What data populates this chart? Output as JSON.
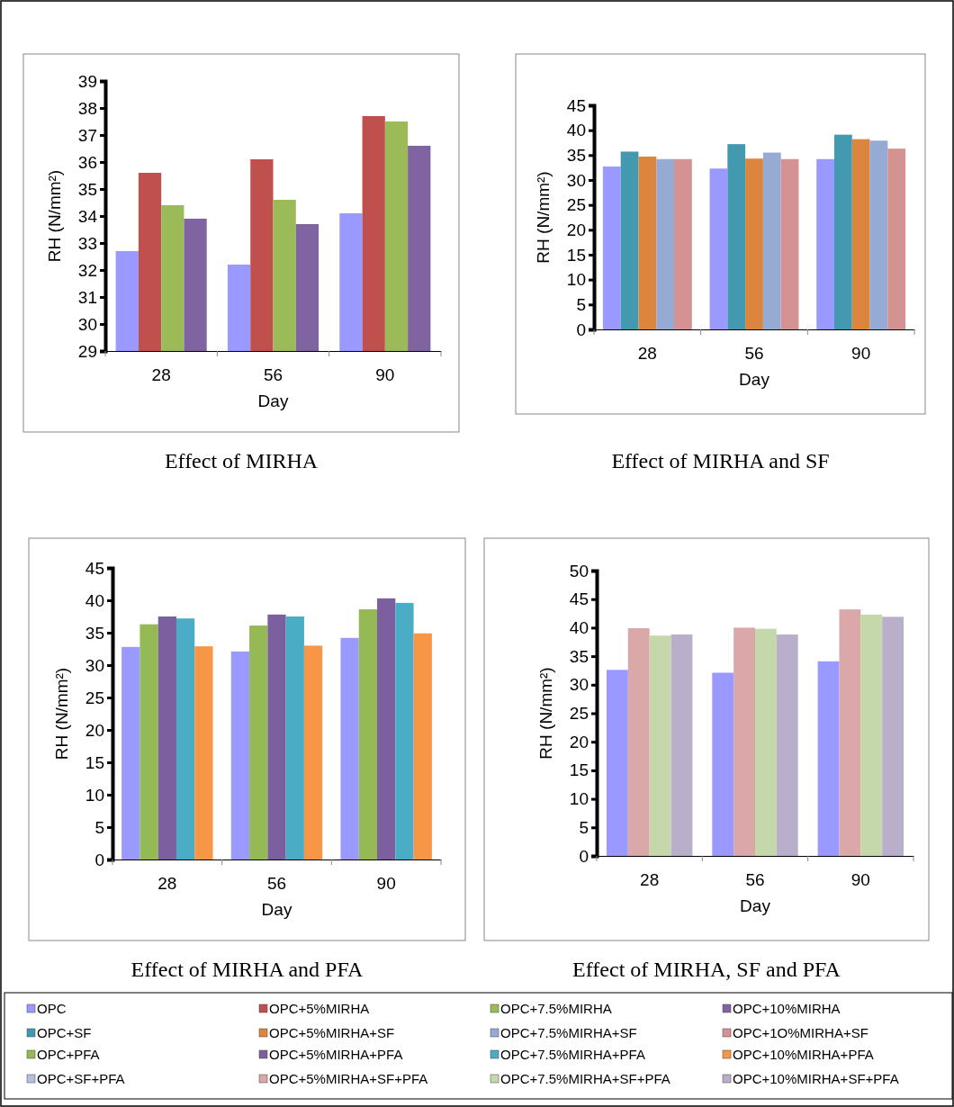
{
  "chart_data": [
    {
      "type": "bar",
      "title": "Effect of MIRHA",
      "xlabel": "Day",
      "ylabel": "RH  (N/mm²)",
      "categories": [
        "28",
        "56",
        "90"
      ],
      "ylim": [
        29,
        39
      ],
      "yticks": [
        29,
        30,
        31,
        32,
        33,
        34,
        35,
        36,
        37,
        38,
        39
      ],
      "legend": "bottom",
      "series": [
        {
          "name": "OPC",
          "color": "#9999ff",
          "values": [
            32.7,
            32.2,
            34.1
          ]
        },
        {
          "name": "OPC+5%MIRHA",
          "color": "#c0504d",
          "values": [
            35.6,
            36.1,
            37.7
          ]
        },
        {
          "name": "OPC+7.5%MIRHA",
          "color": "#9bbb59",
          "values": [
            34.4,
            34.6,
            37.5
          ]
        },
        {
          "name": "OPC+10%MIRHA",
          "color": "#8064a2",
          "values": [
            33.9,
            33.7,
            36.6
          ]
        }
      ]
    },
    {
      "type": "bar",
      "title": "Effect of MIRHA and SF",
      "xlabel": "Day",
      "ylabel": "RH  (N/mm²)",
      "categories": [
        "28",
        "56",
        "90"
      ],
      "ylim": [
        0,
        45
      ],
      "yticks": [
        0,
        5,
        10,
        15,
        20,
        25,
        30,
        35,
        40,
        45
      ],
      "legend": "bottom",
      "series": [
        {
          "color": "#9999ff",
          "values": [
            32.7,
            32.3,
            34.2
          ]
        },
        {
          "name": "OPC+SF",
          "color": "#4399b0",
          "values": [
            35.7,
            37.2,
            39.1
          ]
        },
        {
          "name": "OPC+5%MIRHA+SF",
          "color": "#dc853e",
          "values": [
            34.7,
            34.3,
            38.2
          ]
        },
        {
          "name": "OPC+7.5%MIRHA+SF",
          "color": "#95abd3",
          "values": [
            34.2,
            35.5,
            37.9
          ]
        },
        {
          "name": "OPC+1O%MIRHA+SF",
          "color": "#d49292",
          "values": [
            34.2,
            34.2,
            36.3
          ]
        }
      ]
    },
    {
      "type": "bar",
      "title": "Effect of MIRHA and PFA",
      "xlabel": "Day",
      "ylabel": "RH  (N/mm²)",
      "categories": [
        "28",
        "56",
        "90"
      ],
      "ylim": [
        0,
        45
      ],
      "yticks": [
        0,
        5,
        10,
        15,
        20,
        25,
        30,
        35,
        40,
        45
      ],
      "legend": "bottom",
      "series": [
        {
          "color": "#9999ff",
          "values": [
            32.8,
            32.1,
            34.2
          ]
        },
        {
          "name": "OPC+PFA",
          "color": "#94b955",
          "values": [
            36.3,
            36.1,
            38.6
          ]
        },
        {
          "name": "OPC+5%MIRHA+PFA",
          "color": "#7b5f9e",
          "values": [
            37.5,
            37.8,
            40.3
          ]
        },
        {
          "name": "OPC+7.5%MIRHA+PFA",
          "color": "#4bacc6",
          "values": [
            37.2,
            37.5,
            39.6
          ]
        },
        {
          "name": "OPC+10%MIRHA+PFA",
          "color": "#f79646",
          "values": [
            32.9,
            33.0,
            34.9
          ]
        }
      ]
    },
    {
      "type": "bar",
      "title": "Effect of MIRHA, SF and PFA",
      "xlabel": "Day",
      "ylabel": "RH  (N/mm²)",
      "categories": [
        "28",
        "56",
        "90"
      ],
      "ylim": [
        0,
        50
      ],
      "yticks": [
        0,
        5,
        10,
        15,
        20,
        25,
        30,
        35,
        40,
        45,
        50
      ],
      "legend": "bottom",
      "series": [
        {
          "color": "#9999ff",
          "values": [
            32.6,
            32.1,
            34.1
          ]
        },
        {
          "name": "OPC+SF+PFA",
          "color": "#b3c0e0",
          "values": [
            null,
            null,
            null
          ]
        },
        {
          "name": "OPC+5%MIRHA+SF+PFA",
          "color": "#daa8a8",
          "values": [
            39.9,
            40.0,
            43.2
          ]
        },
        {
          "name": "OPC+7.5%MIRHA+SF+PFA",
          "color": "#c5d8ac",
          "values": [
            38.6,
            39.8,
            42.3
          ]
        },
        {
          "name": "OPC+10%MIRHA+SF+PFA",
          "color": "#b9afcb",
          "values": [
            38.8,
            38.8,
            41.9
          ]
        }
      ]
    }
  ]
}
